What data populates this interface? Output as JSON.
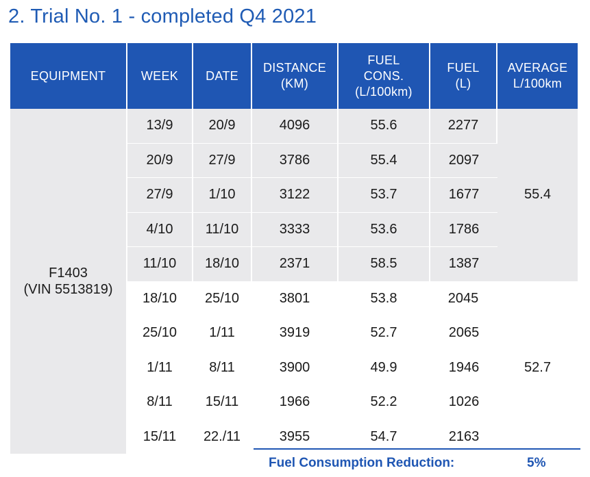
{
  "title": "2. Trial No. 1 - completed Q4 2021",
  "headers": {
    "equipment": [
      "EQUIPMENT"
    ],
    "week": [
      "WEEK"
    ],
    "date": [
      "DATE"
    ],
    "distance": [
      "DISTANCE",
      "(KM)"
    ],
    "fuel_cons": [
      "FUEL",
      "CONS.",
      "(L/100km)"
    ],
    "fuel": [
      "FUEL",
      "(L)"
    ],
    "average": [
      "AVERAGE",
      "L/100km"
    ]
  },
  "equipment": [
    "F1403",
    "(VIN 5513819)"
  ],
  "rows": [
    {
      "week": "13/9",
      "date": "20/9",
      "distance": "4096",
      "fuel_cons": "55.6",
      "fuel": "2277"
    },
    {
      "week": "20/9",
      "date": "27/9",
      "distance": "3786",
      "fuel_cons": "55.4",
      "fuel": "2097"
    },
    {
      "week": "27/9",
      "date": "1/10",
      "distance": "3122",
      "fuel_cons": "53.7",
      "fuel": "1677"
    },
    {
      "week": "4/10",
      "date": "11/10",
      "distance": "3333",
      "fuel_cons": "53.6",
      "fuel": "1786"
    },
    {
      "week": "11/10",
      "date": "18/10",
      "distance": "2371",
      "fuel_cons": "58.5",
      "fuel": "1387"
    },
    {
      "week": "18/10",
      "date": "25/10",
      "distance": "3801",
      "fuel_cons": "53.8",
      "fuel": "2045"
    },
    {
      "week": "25/10",
      "date": "1/11",
      "distance": "3919",
      "fuel_cons": "52.7",
      "fuel": "2065"
    },
    {
      "week": "1/11",
      "date": "8/11",
      "distance": "3900",
      "fuel_cons": "49.9",
      "fuel": "1946"
    },
    {
      "week": "8/11",
      "date": "15/11",
      "distance": "1966",
      "fuel_cons": "52.2",
      "fuel": "1026"
    },
    {
      "week": "15/11",
      "date": "22./11",
      "distance": "3955",
      "fuel_cons": "54.7",
      "fuel": "2163"
    }
  ],
  "averages": [
    "55.4",
    "52.7"
  ],
  "footer": {
    "label": "Fuel Consumption Reduction:",
    "value": "5%"
  },
  "colors": {
    "header_bg": "#1f56b3",
    "shade_bg": "#e9e9eb",
    "accent_text": "#1f5bb4"
  }
}
